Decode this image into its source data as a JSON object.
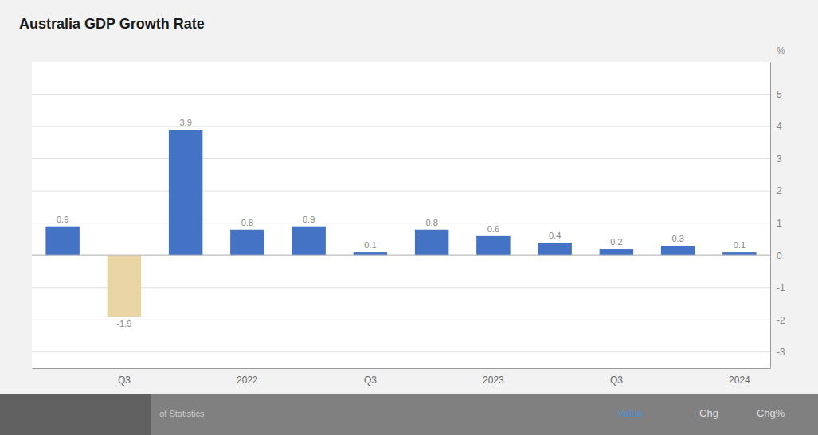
{
  "chart_data": {
    "type": "bar",
    "title": "Australia GDP Growth Rate",
    "categories": [
      null,
      "Q3",
      null,
      "2022",
      null,
      "Q3",
      null,
      "2023",
      null,
      "Q3",
      null,
      "2024"
    ],
    "values": [
      0.9,
      -1.9,
      3.9,
      0.8,
      0.9,
      0.1,
      0.8,
      0.6,
      0.4,
      0.2,
      0.3,
      0.1
    ],
    "colors": [
      "#4472c4",
      "#e8d5a3",
      "#4472c4",
      "#4472c4",
      "#4472c4",
      "#4472c4",
      "#4472c4",
      "#4472c4",
      "#4472c4",
      "#4472c4",
      "#4472c4",
      "#4472c4"
    ],
    "ylim": [
      -3.5,
      6.0
    ],
    "yticks": [
      -3,
      -2,
      -1,
      0,
      1,
      2,
      3,
      4,
      5
    ],
    "y_label": "%",
    "grid": true,
    "data_labels": true,
    "annotations": [
      "of Statistics",
      "Value",
      "Chg",
      "Chg%"
    ]
  }
}
